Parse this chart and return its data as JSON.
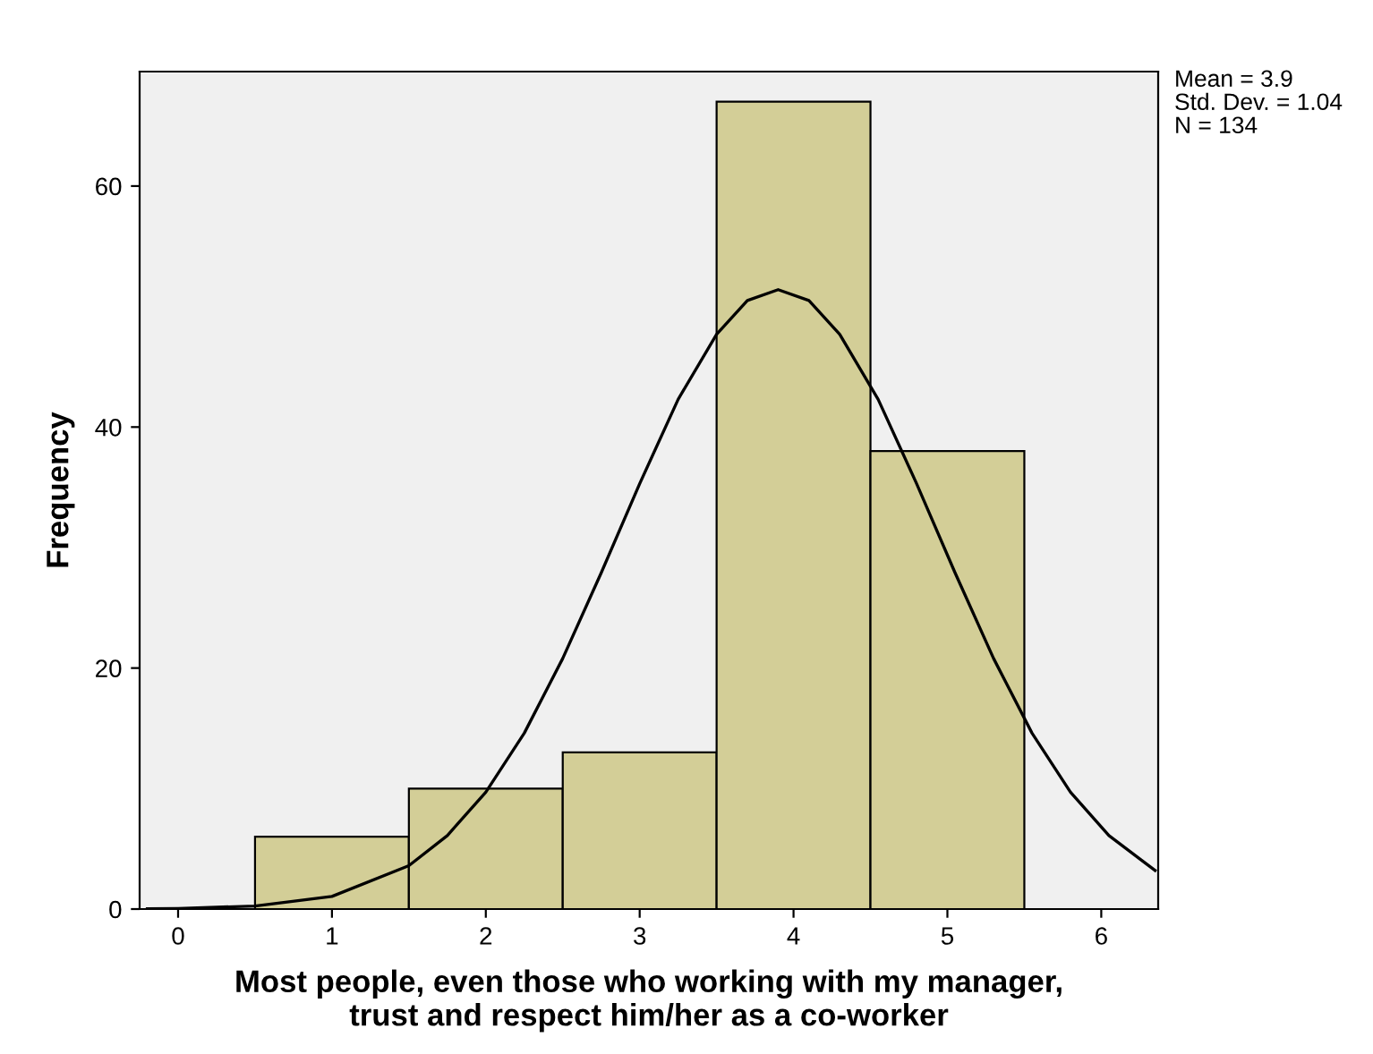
{
  "chart_data": {
    "type": "histogram",
    "xlabel": "Most people, even those who working with my manager,\ntrust and respect him/her as a co-worker",
    "ylabel": "Frequency",
    "bins": [
      0.5,
      1.5,
      2.5,
      3.5,
      4.5,
      5.5
    ],
    "values": [
      6,
      10,
      13,
      67,
      38
    ],
    "color": "#d3ce97",
    "series": [
      {
        "type": "line",
        "color": "#000000",
        "x": [
          -0.2,
          0,
          0.5,
          1,
          1.5,
          1.75,
          2,
          2.25,
          2.5,
          2.75,
          3,
          3.25,
          3.5,
          3.7,
          3.9,
          4.1,
          4.3,
          4.55,
          4.8,
          5.05,
          5.3,
          5.55,
          5.8,
          6.05,
          6.35
        ],
        "values": [
          0.02,
          0.05,
          0.25,
          1.05,
          3.6,
          6.1,
          9.7,
          14.6,
          20.8,
          27.9,
          35.3,
          42.3,
          47.7,
          50.5,
          51.4,
          50.5,
          47.7,
          42.3,
          35.3,
          27.9,
          20.8,
          14.6,
          9.7,
          6.1,
          3.2
        ]
      }
    ],
    "xlim": [
      -0.25,
      6.37
    ],
    "ylim": [
      0,
      69.5
    ],
    "xticks": [
      0,
      1,
      2,
      3,
      4,
      5,
      6
    ],
    "yticks": [
      0,
      20,
      40,
      60
    ],
    "grid": false,
    "legend": false,
    "annotations": [
      "Mean = 3.9",
      "Std. Dev. = 1.04",
      "N = 134"
    ]
  }
}
